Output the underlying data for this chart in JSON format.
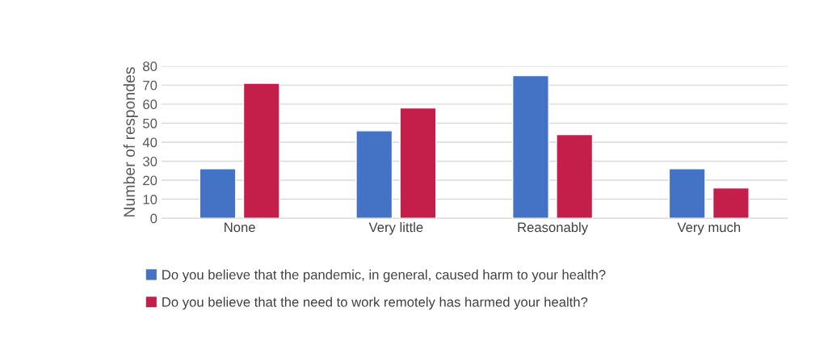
{
  "chart_data": {
    "type": "bar",
    "ylabel": "Number of respondes",
    "categories": [
      "None",
      "Very little",
      "Reasonably",
      "Very much"
    ],
    "series": [
      {
        "name": "Do you believe that the pandemic, in general, caused harm to your health?",
        "color": "#4472c4",
        "values": [
          26,
          46,
          75,
          26
        ]
      },
      {
        "name": "Do you believe that the need to work remotely has harmed your health?",
        "color": "#c41e4a",
        "values": [
          71,
          58,
          44,
          16
        ]
      }
    ],
    "ylim": [
      0,
      80
    ],
    "yticks": [
      0,
      10,
      20,
      30,
      40,
      50,
      60,
      70,
      80
    ],
    "grid": "y",
    "legend": "bottom"
  }
}
